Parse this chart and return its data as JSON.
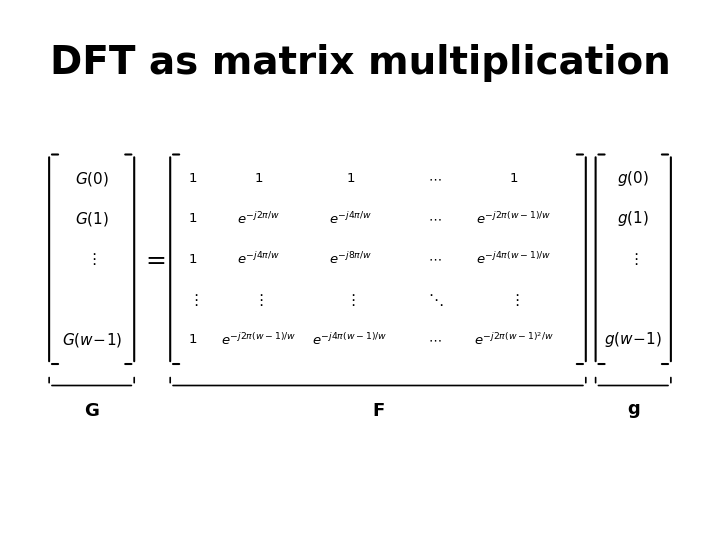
{
  "title": "DFT as matrix multiplication",
  "title_fontsize": 28,
  "title_fontweight": "bold",
  "bg_color": "#ffffff",
  "text_color": "#000000",
  "math_fontsize": 11,
  "label_fontsize": 13
}
